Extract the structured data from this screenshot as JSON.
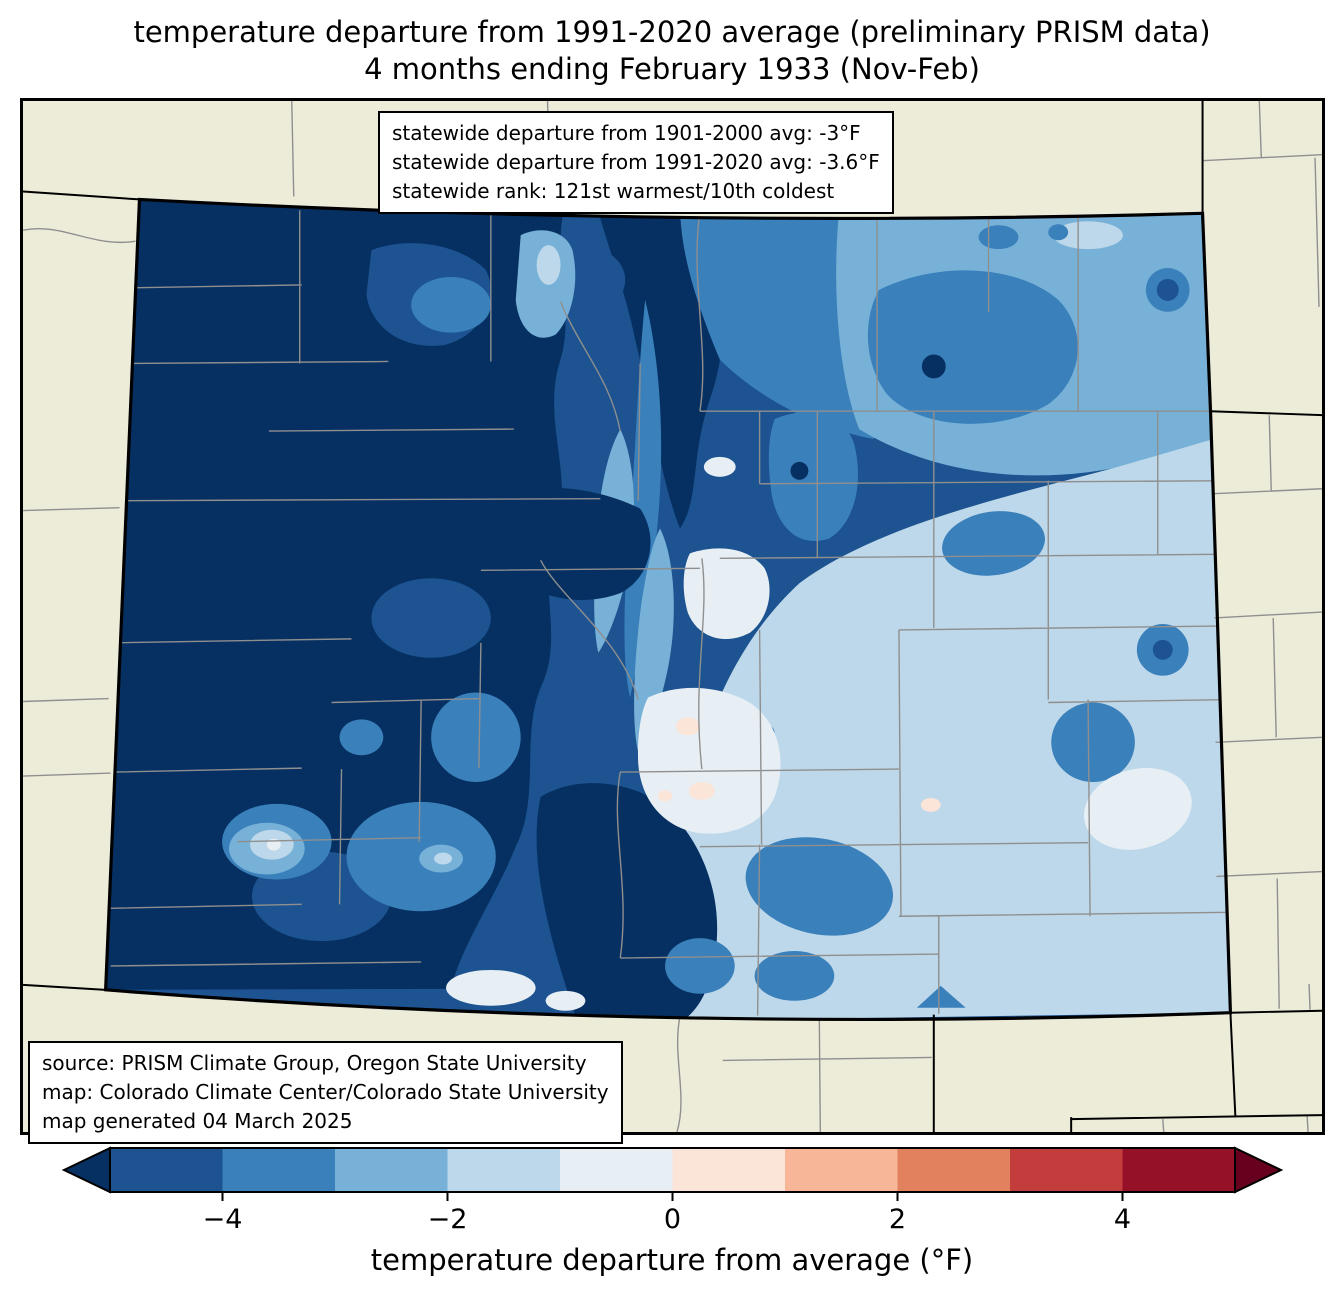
{
  "title": {
    "line1": "temperature departure from 1991-2020 average (preliminary PRISM data)",
    "line2": "4 months ending February 1933 (Nov-Feb)"
  },
  "stats_box": {
    "lines": [
      "statewide departure from 1901-2000 avg: -3°F",
      "statewide departure from 1991-2020 avg: -3.6°F",
      "statewide rank: 121st warmest/10th coldest"
    ]
  },
  "source_box": {
    "lines": [
      "source: PRISM Climate Group, Oregon State University",
      "map: Colorado Climate Center/Colorado State University",
      "map generated 04 March 2025"
    ]
  },
  "colorbar": {
    "label": "temperature departure from average (°F)",
    "tick_labels": [
      "−4",
      "−2",
      "0",
      "2",
      "4"
    ],
    "tick_positions": [
      0.1,
      0.3,
      0.5,
      0.7,
      0.9
    ],
    "bounds": [
      -5,
      -4,
      -3,
      -2,
      -1,
      0,
      1,
      2,
      3,
      4,
      5
    ],
    "under_color": "#053061",
    "over_color": "#67001f",
    "bin_colors": [
      "#1c5390",
      "#3a80bb",
      "#77b1d7",
      "#bdd8ea",
      "#e7eff5",
      "#fbe5d8",
      "#f7b698",
      "#e2815e",
      "#c33d3c",
      "#951127"
    ]
  },
  "map": {
    "background_color": "#edecd9",
    "county_line_color": "#8f8f8f",
    "state_border_color": "#000000",
    "palette": {
      "p0": "#053061",
      "p1": "#1c5390",
      "p2": "#3a80bb",
      "p3": "#77b1d7",
      "p4": "#bdd8ea",
      "p5": "#e7eff5",
      "p6": "#fbe5d8"
    }
  }
}
